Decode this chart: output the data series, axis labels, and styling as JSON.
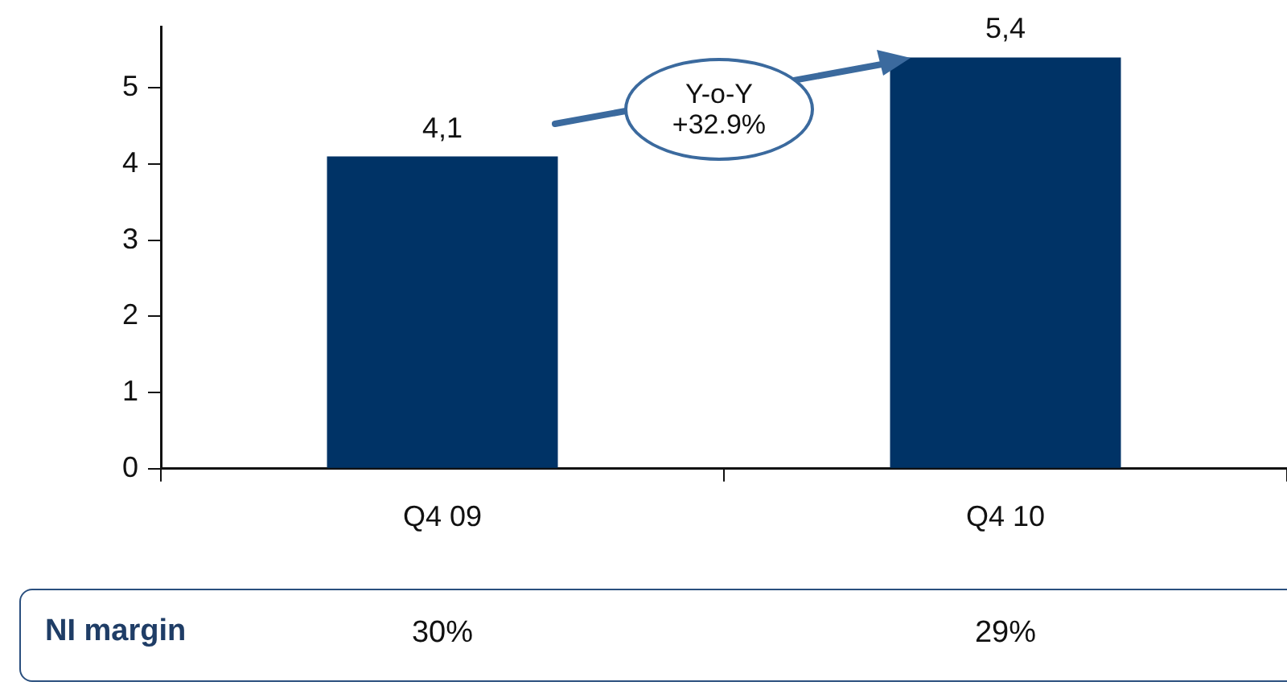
{
  "chart_data": {
    "type": "bar",
    "categories": [
      "Q4 09",
      "Q4 10"
    ],
    "values": [
      4.1,
      5.4
    ],
    "color": "#003366",
    "value_labels": [
      "4,1",
      "5,4"
    ],
    "ylim": [
      0,
      5.8
    ],
    "yticks": [
      0,
      1,
      2,
      3,
      4,
      5
    ],
    "grid": false,
    "legend": false,
    "annotations": [
      "Y-o-Y +32.9%",
      "NI margin",
      "30%",
      "29%"
    ]
  }
}
